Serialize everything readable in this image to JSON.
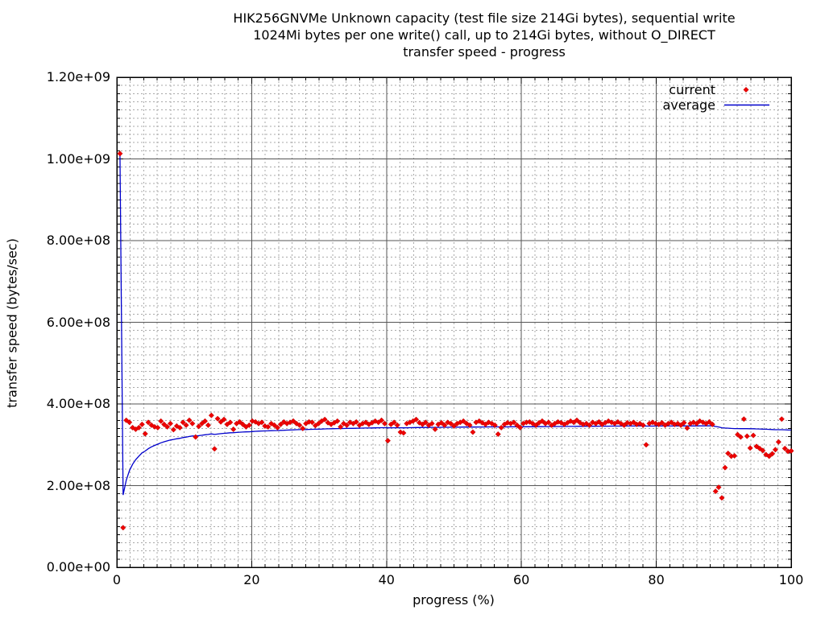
{
  "title": {
    "line1": "HIK256GNVMe Unknown capacity (test file size 214Gi bytes), sequential write",
    "line2": "1024Mi bytes per one write() call, up to 214Gi bytes, without O_DIRECT",
    "line3": "transfer speed - progress"
  },
  "axes": {
    "x": {
      "label": "progress (%)",
      "min": 0,
      "max": 100,
      "tick_values": [
        0,
        20,
        40,
        60,
        80,
        100
      ],
      "tick_labels": [
        "0",
        "20",
        "40",
        "60",
        "80",
        "100"
      ],
      "minor_step": 2
    },
    "y": {
      "label": "transfer speed (bytes/sec)",
      "min": 0,
      "max": 1200000000.0,
      "unit": "1e8 bytes/sec",
      "tick_values": [
        0,
        2,
        4,
        6,
        8,
        10,
        12
      ],
      "tick_labels": [
        "0.00e+00",
        "2.00e+08",
        "4.00e+08",
        "6.00e+08",
        "8.00e+08",
        "1.00e+09",
        "1.20e+09"
      ],
      "minor_step": 0.2
    }
  },
  "legend": {
    "items": [
      {
        "label": "current",
        "type": "point",
        "color": "#ee0000"
      },
      {
        "label": "average",
        "type": "line",
        "color": "#0000cc"
      }
    ]
  },
  "colors": {
    "background": "#ffffff",
    "border": "#000000",
    "major_grid": "#555555",
    "minor_grid": "#a8a8a8",
    "points": "#ee0000",
    "points_edge": "#bb0000",
    "average_line": "#0000cc",
    "text": "#000000"
  },
  "chart_data": {
    "type": "scatter",
    "x_range": [
      0,
      100
    ],
    "y_range_e8": [
      0,
      12
    ],
    "grid": "major solid + minor dashed",
    "legend_position": "top-right inside",
    "series": [
      {
        "name": "current",
        "style": "points",
        "marker": "filled-diamond",
        "color": "#ee0000",
        "y_unit": "1e8 bytes/sec",
        "points": [
          [
            0.47,
            10.13
          ],
          [
            0.93,
            0.97
          ],
          [
            1.4,
            3.6
          ],
          [
            1.87,
            3.55
          ],
          [
            2.34,
            3.42
          ],
          [
            2.8,
            3.38
          ],
          [
            3.27,
            3.42
          ],
          [
            3.74,
            3.5
          ],
          [
            4.21,
            3.27
          ],
          [
            4.67,
            3.55
          ],
          [
            5.14,
            3.48
          ],
          [
            5.61,
            3.44
          ],
          [
            6.07,
            3.42
          ],
          [
            6.54,
            3.58
          ],
          [
            7.01,
            3.5
          ],
          [
            7.48,
            3.44
          ],
          [
            7.94,
            3.52
          ],
          [
            8.41,
            3.37
          ],
          [
            8.88,
            3.46
          ],
          [
            9.35,
            3.42
          ],
          [
            9.81,
            3.55
          ],
          [
            10.28,
            3.48
          ],
          [
            10.75,
            3.6
          ],
          [
            11.21,
            3.52
          ],
          [
            11.68,
            3.19
          ],
          [
            12.15,
            3.45
          ],
          [
            12.62,
            3.52
          ],
          [
            13.08,
            3.58
          ],
          [
            13.55,
            3.48
          ],
          [
            14.02,
            3.72
          ],
          [
            14.49,
            2.9
          ],
          [
            14.95,
            3.64
          ],
          [
            15.42,
            3.56
          ],
          [
            15.89,
            3.62
          ],
          [
            16.36,
            3.5
          ],
          [
            16.82,
            3.55
          ],
          [
            17.29,
            3.38
          ],
          [
            17.76,
            3.52
          ],
          [
            18.22,
            3.56
          ],
          [
            18.69,
            3.5
          ],
          [
            19.16,
            3.44
          ],
          [
            19.63,
            3.48
          ],
          [
            20.09,
            3.58
          ],
          [
            20.56,
            3.56
          ],
          [
            21.03,
            3.52
          ],
          [
            21.5,
            3.55
          ],
          [
            21.96,
            3.46
          ],
          [
            22.43,
            3.44
          ],
          [
            22.9,
            3.52
          ],
          [
            23.36,
            3.48
          ],
          [
            23.83,
            3.42
          ],
          [
            24.3,
            3.5
          ],
          [
            24.77,
            3.56
          ],
          [
            25.23,
            3.52
          ],
          [
            25.7,
            3.55
          ],
          [
            26.17,
            3.58
          ],
          [
            26.64,
            3.52
          ],
          [
            27.1,
            3.48
          ],
          [
            27.57,
            3.4
          ],
          [
            28.04,
            3.52
          ],
          [
            28.5,
            3.56
          ],
          [
            28.97,
            3.55
          ],
          [
            29.44,
            3.47
          ],
          [
            29.91,
            3.52
          ],
          [
            30.37,
            3.58
          ],
          [
            30.84,
            3.62
          ],
          [
            31.31,
            3.54
          ],
          [
            31.78,
            3.5
          ],
          [
            32.24,
            3.54
          ],
          [
            32.71,
            3.58
          ],
          [
            33.18,
            3.44
          ],
          [
            33.64,
            3.52
          ],
          [
            34.11,
            3.48
          ],
          [
            34.58,
            3.55
          ],
          [
            35.05,
            3.52
          ],
          [
            35.51,
            3.56
          ],
          [
            35.98,
            3.48
          ],
          [
            36.45,
            3.52
          ],
          [
            36.92,
            3.55
          ],
          [
            37.38,
            3.5
          ],
          [
            37.85,
            3.54
          ],
          [
            38.32,
            3.58
          ],
          [
            38.79,
            3.55
          ],
          [
            39.25,
            3.6
          ],
          [
            39.72,
            3.52
          ],
          [
            40.19,
            3.1
          ],
          [
            40.65,
            3.5
          ],
          [
            41.12,
            3.55
          ],
          [
            41.59,
            3.48
          ],
          [
            42.06,
            3.31
          ],
          [
            42.52,
            3.29
          ],
          [
            42.99,
            3.52
          ],
          [
            43.46,
            3.55
          ],
          [
            43.93,
            3.58
          ],
          [
            44.39,
            3.62
          ],
          [
            44.86,
            3.54
          ],
          [
            45.33,
            3.5
          ],
          [
            45.79,
            3.55
          ],
          [
            46.26,
            3.48
          ],
          [
            46.73,
            3.52
          ],
          [
            47.2,
            3.38
          ],
          [
            47.66,
            3.5
          ],
          [
            48.13,
            3.54
          ],
          [
            48.6,
            3.48
          ],
          [
            49.07,
            3.55
          ],
          [
            49.53,
            3.52
          ],
          [
            50.0,
            3.46
          ],
          [
            50.47,
            3.52
          ],
          [
            50.93,
            3.55
          ],
          [
            51.4,
            3.58
          ],
          [
            51.87,
            3.52
          ],
          [
            52.34,
            3.48
          ],
          [
            52.8,
            3.31
          ],
          [
            53.27,
            3.55
          ],
          [
            53.74,
            3.58
          ],
          [
            54.21,
            3.54
          ],
          [
            54.67,
            3.5
          ],
          [
            55.14,
            3.55
          ],
          [
            55.61,
            3.52
          ],
          [
            56.07,
            3.48
          ],
          [
            56.54,
            3.26
          ],
          [
            57.01,
            3.42
          ],
          [
            57.48,
            3.5
          ],
          [
            57.94,
            3.54
          ],
          [
            58.41,
            3.52
          ],
          [
            58.88,
            3.55
          ],
          [
            59.35,
            3.48
          ],
          [
            59.81,
            3.42
          ],
          [
            60.28,
            3.52
          ],
          [
            60.75,
            3.55
          ],
          [
            61.21,
            3.56
          ],
          [
            61.68,
            3.52
          ],
          [
            62.15,
            3.48
          ],
          [
            62.62,
            3.54
          ],
          [
            63.08,
            3.58
          ],
          [
            63.55,
            3.52
          ],
          [
            64.02,
            3.55
          ],
          [
            64.49,
            3.48
          ],
          [
            64.95,
            3.52
          ],
          [
            65.42,
            3.56
          ],
          [
            65.89,
            3.54
          ],
          [
            66.36,
            3.5
          ],
          [
            66.82,
            3.54
          ],
          [
            67.29,
            3.58
          ],
          [
            67.76,
            3.55
          ],
          [
            68.22,
            3.6
          ],
          [
            68.69,
            3.54
          ],
          [
            69.16,
            3.5
          ],
          [
            69.63,
            3.52
          ],
          [
            70.09,
            3.48
          ],
          [
            70.56,
            3.55
          ],
          [
            71.03,
            3.52
          ],
          [
            71.5,
            3.56
          ],
          [
            71.96,
            3.5
          ],
          [
            72.43,
            3.54
          ],
          [
            72.9,
            3.58
          ],
          [
            73.36,
            3.55
          ],
          [
            73.83,
            3.52
          ],
          [
            74.3,
            3.56
          ],
          [
            74.77,
            3.52
          ],
          [
            75.23,
            3.48
          ],
          [
            75.7,
            3.54
          ],
          [
            76.17,
            3.52
          ],
          [
            76.64,
            3.55
          ],
          [
            77.1,
            3.5
          ],
          [
            77.57,
            3.52
          ],
          [
            78.04,
            3.48
          ],
          [
            78.5,
            3.0
          ],
          [
            78.97,
            3.52
          ],
          [
            79.44,
            3.55
          ],
          [
            79.91,
            3.52
          ],
          [
            80.37,
            3.5
          ],
          [
            80.84,
            3.54
          ],
          [
            81.31,
            3.48
          ],
          [
            81.78,
            3.52
          ],
          [
            82.24,
            3.55
          ],
          [
            82.71,
            3.5
          ],
          [
            83.18,
            3.52
          ],
          [
            83.64,
            3.48
          ],
          [
            84.11,
            3.54
          ],
          [
            84.58,
            3.41
          ],
          [
            85.05,
            3.52
          ],
          [
            85.51,
            3.55
          ],
          [
            85.98,
            3.52
          ],
          [
            86.45,
            3.58
          ],
          [
            86.92,
            3.55
          ],
          [
            87.38,
            3.52
          ],
          [
            87.85,
            3.56
          ],
          [
            88.32,
            3.5
          ],
          [
            88.79,
            1.86
          ],
          [
            89.25,
            1.96
          ],
          [
            89.72,
            1.7
          ],
          [
            90.19,
            2.44
          ],
          [
            90.65,
            2.79
          ],
          [
            91.12,
            2.72
          ],
          [
            91.59,
            2.73
          ],
          [
            92.06,
            3.25
          ],
          [
            92.52,
            3.19
          ],
          [
            92.99,
            3.63
          ],
          [
            93.46,
            3.21
          ],
          [
            93.93,
            2.92
          ],
          [
            94.39,
            3.23
          ],
          [
            94.86,
            2.96
          ],
          [
            95.33,
            2.91
          ],
          [
            95.79,
            2.86
          ],
          [
            96.26,
            2.76
          ],
          [
            96.73,
            2.72
          ],
          [
            97.2,
            2.78
          ],
          [
            97.66,
            2.88
          ],
          [
            98.13,
            3.07
          ],
          [
            98.6,
            3.63
          ],
          [
            99.07,
            2.91
          ],
          [
            99.53,
            2.84
          ],
          [
            100.0,
            2.85
          ]
        ]
      },
      {
        "name": "average",
        "style": "line",
        "color": "#0000cc",
        "derivation": "cumulative_harmonic_mean_of_current",
        "end_value_e8": 3.38
      }
    ]
  }
}
